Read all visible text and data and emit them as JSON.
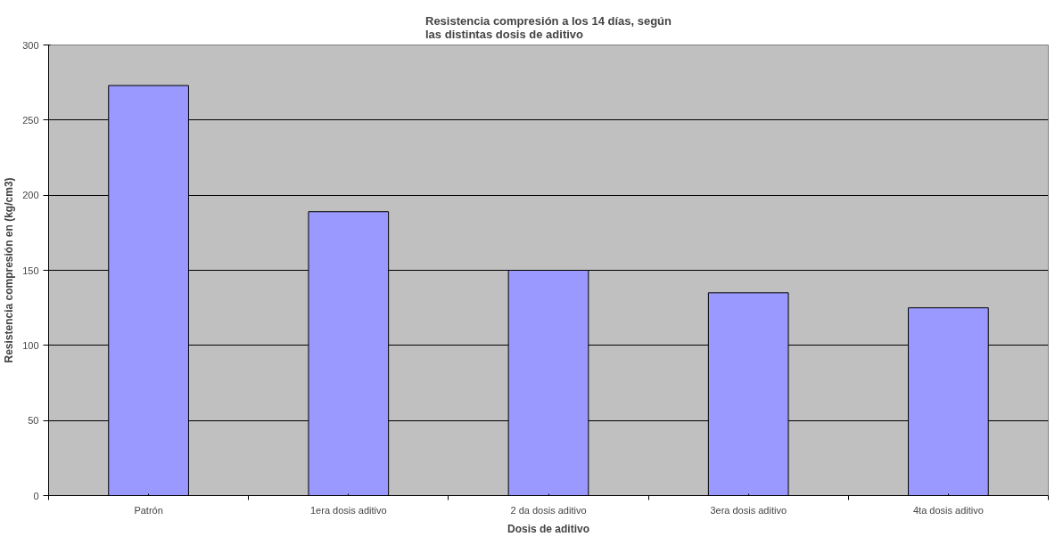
{
  "chart_data": {
    "type": "bar",
    "title": "Resistencia compresión a los 14 días, según\nlas distintas dosis de aditivo",
    "xlabel": "Dosis de aditivo",
    "ylabel": "Resistencia compresión en (kg/cm3)",
    "categories": [
      "Patrón",
      "1era dosis aditivo",
      "2 da dosis aditivo",
      "3era dosis aditivo",
      "4ta dosis aditivo"
    ],
    "values": [
      273,
      189,
      150,
      135,
      125
    ],
    "color": "#9999ff",
    "ylim": [
      0,
      300
    ],
    "yticks": [
      0,
      50,
      100,
      150,
      200,
      250,
      300
    ],
    "grid": "y"
  }
}
